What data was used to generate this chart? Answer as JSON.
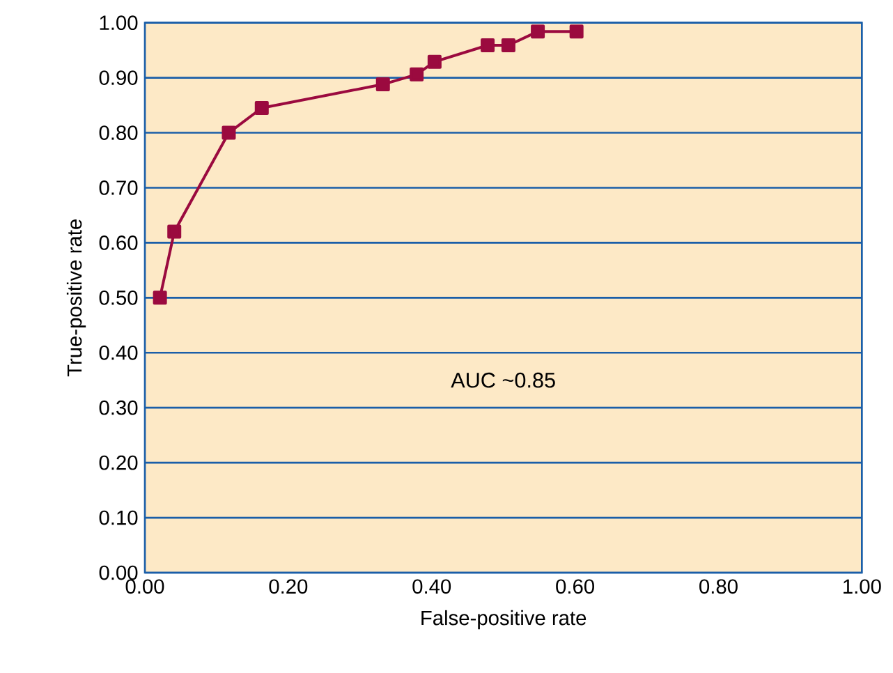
{
  "chart_data": {
    "type": "line",
    "xlabel": "False-positive rate",
    "ylabel": "True-positive rate",
    "x": [
      0.021,
      0.041,
      0.117,
      0.163,
      0.332,
      0.379,
      0.404,
      0.478,
      0.507,
      0.548,
      0.602
    ],
    "series": [
      {
        "color": "#9b0a3f",
        "values": [
          0.5,
          0.62,
          0.8,
          0.845,
          0.888,
          0.906,
          0.929,
          0.959,
          0.959,
          0.984,
          0.984
        ]
      }
    ],
    "xlim": [
      0,
      1
    ],
    "ylim": [
      0,
      1
    ],
    "xticks": [
      {
        "value": 0,
        "label": "0.00"
      },
      {
        "value": 0.2,
        "label": "0.20"
      },
      {
        "value": 0.4,
        "label": "0.40"
      },
      {
        "value": 0.6,
        "label": "0.60"
      },
      {
        "value": 0.8,
        "label": "0.80"
      },
      {
        "value": 1,
        "label": "1.00"
      }
    ],
    "yticks": [
      {
        "value": 0,
        "label": "0.00"
      },
      {
        "value": 0.1,
        "label": "0.10"
      },
      {
        "value": 0.2,
        "label": "0.20"
      },
      {
        "value": 0.3,
        "label": "0.30"
      },
      {
        "value": 0.4,
        "label": "0.40"
      },
      {
        "value": 0.5,
        "label": "0.50"
      },
      {
        "value": 0.6,
        "label": "0.60"
      },
      {
        "value": 0.7,
        "label": "0.70"
      },
      {
        "value": 0.8,
        "label": "0.80"
      },
      {
        "value": 0.9,
        "label": "0.90"
      },
      {
        "value": 1,
        "label": "1.00"
      }
    ],
    "grid": "y",
    "marker": "square",
    "line_style": "solid",
    "annotations": [
      "AUC ~0.85"
    ]
  }
}
